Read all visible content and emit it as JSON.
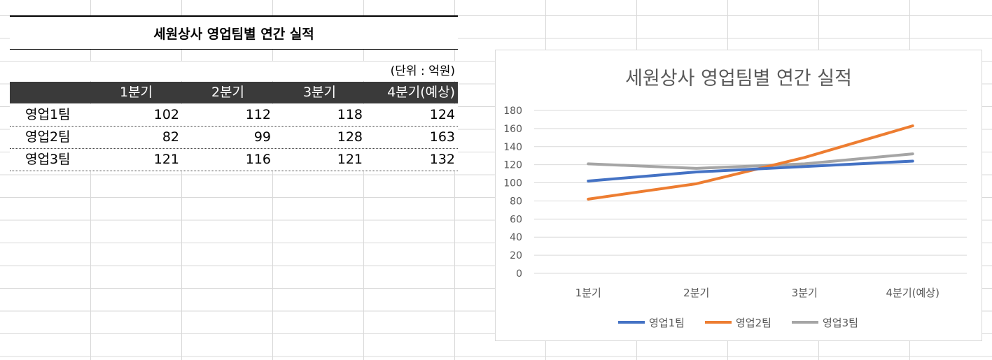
{
  "table": {
    "title": "세원상사 영업팀별 연간 실적",
    "unit": "(단위 : 억원)",
    "headers": [
      "",
      "1분기",
      "2분기",
      "3분기",
      "4분기(예상)"
    ],
    "rows": [
      {
        "team": "영업1팀",
        "values": [
          "102",
          "112",
          "118",
          "124"
        ]
      },
      {
        "team": "영업2팀",
        "values": [
          "82",
          "99",
          "128",
          "163"
        ]
      },
      {
        "team": "영업3팀",
        "values": [
          "121",
          "116",
          "121",
          "132"
        ]
      }
    ]
  },
  "chart_data": {
    "type": "line",
    "title": "세원상사 영업팀별 연간 실적",
    "categories": [
      "1분기",
      "2분기",
      "3분기",
      "4분기(예상)"
    ],
    "series": [
      {
        "name": "영업1팀",
        "values": [
          102,
          112,
          118,
          124
        ],
        "color": "#4472c4"
      },
      {
        "name": "영업2팀",
        "values": [
          82,
          99,
          128,
          163
        ],
        "color": "#ed7d31"
      },
      {
        "name": "영업3팀",
        "values": [
          121,
          116,
          121,
          132
        ],
        "color": "#a5a5a5"
      }
    ],
    "ylim": [
      0,
      180
    ],
    "yticks": [
      0,
      20,
      40,
      60,
      80,
      100,
      120,
      140,
      160,
      180
    ],
    "grid": true,
    "legend": "bottom"
  }
}
